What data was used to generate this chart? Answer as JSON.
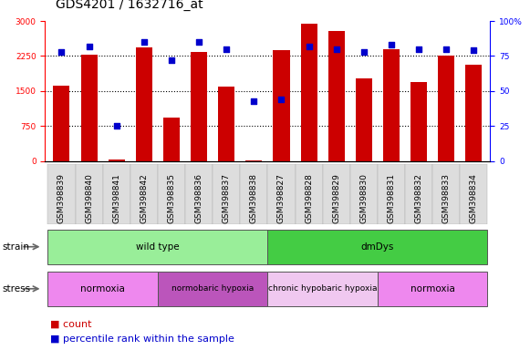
{
  "title": "GDS4201 / 1632716_at",
  "samples": [
    "GSM398839",
    "GSM398840",
    "GSM398841",
    "GSM398842",
    "GSM398835",
    "GSM398836",
    "GSM398837",
    "GSM398838",
    "GSM398827",
    "GSM398828",
    "GSM398829",
    "GSM398830",
    "GSM398831",
    "GSM398832",
    "GSM398833",
    "GSM398834"
  ],
  "counts": [
    1620,
    2270,
    30,
    2440,
    930,
    2330,
    1590,
    20,
    2380,
    2950,
    2790,
    1780,
    2400,
    1700,
    2250,
    2070
  ],
  "percentile_ranks": [
    78,
    82,
    25,
    85,
    72,
    85,
    80,
    43,
    44,
    82,
    80,
    78,
    83,
    80,
    80,
    79
  ],
  "ylim_left": [
    0,
    3000
  ],
  "ylim_right": [
    0,
    100
  ],
  "yticks_left": [
    0,
    750,
    1500,
    2250,
    3000
  ],
  "yticks_right": [
    0,
    25,
    50,
    75,
    100
  ],
  "bar_color": "#cc0000",
  "dot_color": "#0000cc",
  "background_color": "#ffffff",
  "strain_groups": [
    {
      "label": "wild type",
      "start": 0,
      "end": 8,
      "color": "#99ee99"
    },
    {
      "label": "dmDys",
      "start": 8,
      "end": 16,
      "color": "#44cc44"
    }
  ],
  "stress_groups": [
    {
      "label": "normoxia",
      "start": 0,
      "end": 4,
      "color": "#ee88ee"
    },
    {
      "label": "normobaric hypoxia",
      "start": 4,
      "end": 8,
      "color": "#bb55bb"
    },
    {
      "label": "chronic hypobaric hypoxia",
      "start": 8,
      "end": 12,
      "color": "#f0c8f0"
    },
    {
      "label": "normoxia",
      "start": 12,
      "end": 16,
      "color": "#ee88ee"
    }
  ],
  "title_fontsize": 10,
  "tick_fontsize": 6.5,
  "label_fontsize": 7.5,
  "bar_width": 0.6,
  "xlim": [
    -0.6,
    15.6
  ]
}
